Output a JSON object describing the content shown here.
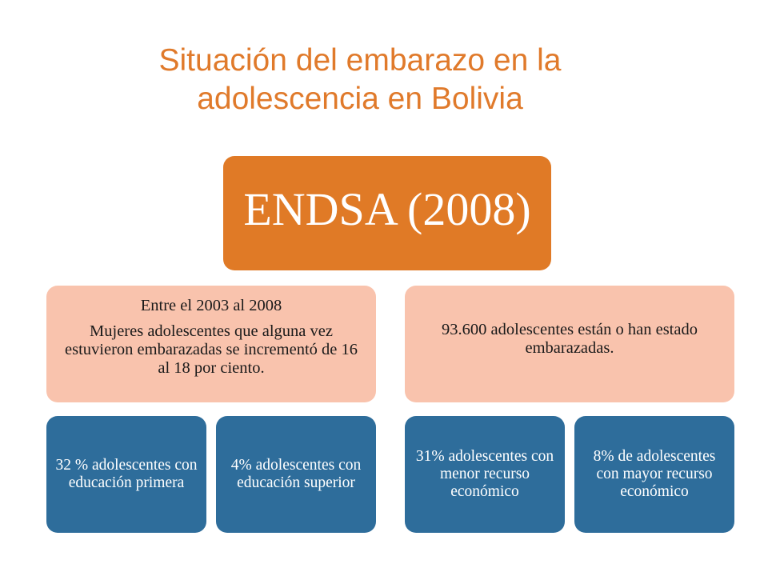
{
  "title": {
    "line1": "Situación del embarazo en la",
    "line2": "adolescencia en Bolivia"
  },
  "root": {
    "label": "ENDSA (2008)"
  },
  "left_branch": {
    "heading": "Entre el 2003 al 2008",
    "text": "Mujeres adolescentes que alguna vez estuvieron embarazadas se incrementó de 16 al 18 por ciento.",
    "children": [
      {
        "text": "32 % adolescentes con educación primera"
      },
      {
        "text": "4% adolescentes con educación superior"
      }
    ]
  },
  "right_branch": {
    "text": "93.600 adolescentes están o han estado embarazadas.",
    "children": [
      {
        "text": "31% adolescentes con menor recurso económico"
      },
      {
        "text": "8% de adolescentes con mayor recurso económico"
      }
    ]
  },
  "colors": {
    "title": "#e07a2b",
    "root": "#e07a26",
    "mid": "#f9c3ad",
    "leaf": "#2e6d9b"
  }
}
